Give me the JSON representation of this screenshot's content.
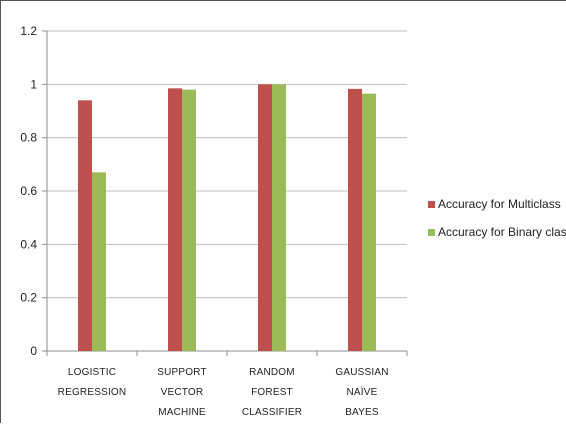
{
  "chart_data": {
    "type": "bar",
    "title": "",
    "xlabel": "",
    "ylabel": "",
    "categories": [
      [
        "Logistic",
        "Regression"
      ],
      [
        "Support",
        "Vector",
        "Machine"
      ],
      [
        "Random",
        "Forest",
        "Classifier"
      ],
      [
        "Gaussian",
        "Naïve",
        "Bayes"
      ]
    ],
    "series": [
      {
        "name": "Accuracy for Multiclass",
        "color": "#c0504d",
        "values": [
          0.94,
          0.985,
          1.0,
          0.983
        ]
      },
      {
        "name": "Accuracy for Binary class",
        "color": "#9bbb59",
        "values": [
          0.67,
          0.98,
          1.0,
          0.965
        ]
      }
    ],
    "ylim": [
      0,
      1.2
    ],
    "yticks": [
      0,
      0.2,
      0.4,
      0.6,
      0.8,
      1,
      1.2
    ],
    "ytick_labels": [
      "0",
      "0.2",
      "0.4",
      "0.6",
      "0.8",
      "1",
      "1.2"
    ],
    "grid": true,
    "legend_position": "right"
  }
}
